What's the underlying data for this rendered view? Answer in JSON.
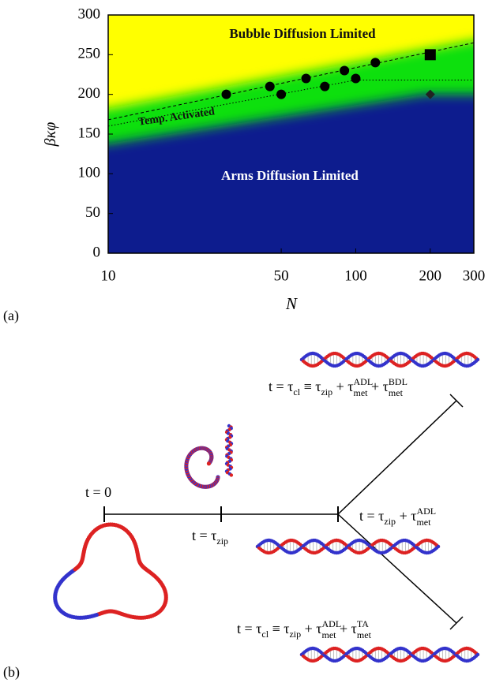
{
  "chart_data": {
    "type": "scatter",
    "xlabel": "N",
    "ylabel": "βκφ",
    "xlog": true,
    "xlim": [
      10,
      300
    ],
    "xticks": [
      10,
      50,
      100,
      200,
      300
    ],
    "ylim": [
      0,
      300
    ],
    "yticks": [
      0,
      50,
      100,
      150,
      200,
      250,
      300
    ],
    "regions": [
      {
        "color": "#ffff00",
        "x": [
          10,
          300
        ],
        "y": [
          300,
          300
        ]
      },
      {
        "color": "#10e010",
        "x": [
          10,
          300
        ],
        "y": [
          182,
          268
        ]
      },
      {
        "color": "#0b1a8e",
        "x": [
          10,
          190,
          300
        ],
        "y": [
          138,
          200,
          200
        ]
      }
    ],
    "lines": [
      {
        "style": "dashed",
        "x": [
          10,
          300
        ],
        "y": [
          168,
          265
        ]
      },
      {
        "style": "dotted",
        "x": [
          10,
          100,
          300
        ],
        "y": [
          160,
          218,
          218
        ]
      }
    ],
    "annotations": [
      "Bubble Diffusion Limited",
      "Temp. Activated",
      "Arms Diffusion Limited"
    ],
    "series": [
      {
        "marker": "circle",
        "color": "#000000",
        "x": [
          30,
          45,
          50,
          63,
          75,
          90,
          100,
          120
        ],
        "values": [
          200,
          210,
          200,
          220,
          210,
          230,
          220,
          240
        ]
      },
      {
        "marker": "square",
        "color": "#000000",
        "x": [
          200
        ],
        "values": [
          250
        ]
      },
      {
        "marker": "diamond",
        "color": "#222222",
        "x": [
          200
        ],
        "values": [
          200
        ]
      }
    ]
  },
  "panel_labels": [
    "(a)",
    "(b)"
  ],
  "diagram": {
    "labels": [
      {
        "parts": [
          {
            "text": "t = 0"
          }
        ]
      },
      {
        "parts": [
          {
            "text": "t = τ"
          },
          {
            "text": "zip",
            "sub": true
          }
        ]
      },
      {
        "parts": [
          {
            "text": "t = τ"
          },
          {
            "text": "zip",
            "sub": true
          },
          {
            "text": " + τ"
          },
          {
            "text": "ADL",
            "sup": true
          },
          {
            "text": "met",
            "sub": true,
            "under": true
          }
        ]
      },
      {
        "parts": [
          {
            "text": "t = τ"
          },
          {
            "text": "cl",
            "sub": true
          },
          {
            "text": " ≡ τ"
          },
          {
            "text": "zip",
            "sub": true
          },
          {
            "text": " + τ"
          },
          {
            "text": "ADL",
            "sup": true
          },
          {
            "text": "met",
            "sub": true,
            "under": true
          },
          {
            "text": " + τ"
          },
          {
            "text": "BDL",
            "sup": true
          },
          {
            "text": "met",
            "sub": true,
            "under": true
          }
        ]
      },
      {
        "parts": [
          {
            "text": "t = τ"
          },
          {
            "text": "cl",
            "sub": true
          },
          {
            "text": " ≡ τ"
          },
          {
            "text": "zip",
            "sub": true
          },
          {
            "text": " + τ"
          },
          {
            "text": "ADL",
            "sup": true
          },
          {
            "text": "met",
            "sub": true,
            "under": true
          },
          {
            "text": " + τ"
          },
          {
            "text": "TA",
            "sup": true
          },
          {
            "text": "met",
            "sub": true,
            "under": true
          }
        ]
      }
    ]
  }
}
